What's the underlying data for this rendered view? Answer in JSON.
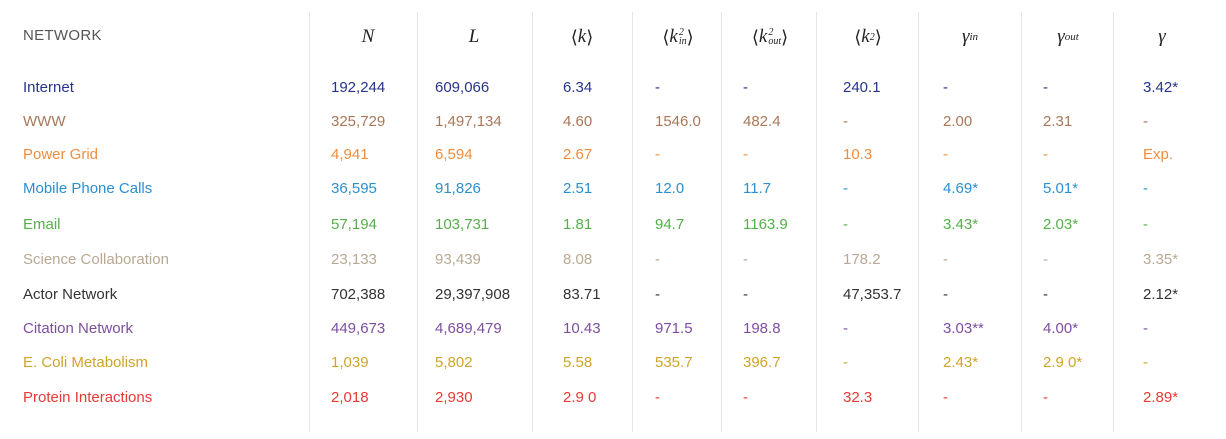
{
  "headers": {
    "network": "NETWORK",
    "N": "N",
    "L": "L",
    "k": "k",
    "k_in2": "k",
    "k_out2": "k",
    "k2": "k",
    "gamma_in": "γ",
    "gamma_out": "γ",
    "gamma": "γ",
    "sup2": "2",
    "sub_in": "in",
    "sub_out": "out",
    "langle": "⟨",
    "rangle": "⟩"
  },
  "rows": [
    {
      "name": "Internet",
      "color": "#27348b",
      "N": "192,244",
      "L": "609,066",
      "k": "6.34",
      "kin2": "-",
      "kout2": "-",
      "k2": "240.1",
      "gin": "-",
      "gout": "-",
      "g": "3.42*"
    },
    {
      "name": "WWW",
      "color": "#a9785a",
      "N": "325,729",
      "L": "1,497,134",
      "k": "4.60",
      "kin2": "1546.0",
      "kout2": "482.4",
      "k2": "-",
      "gin": "2.00",
      "gout": "2.31",
      "g": "-"
    },
    {
      "name": "Power Grid",
      "color": "#f08d3e",
      "N": "4,941",
      "L": "6,594",
      "k": "2.67",
      "kin2": "-",
      "kout2": "-",
      "k2": "10.3",
      "gin": "-",
      "gout": "-",
      "g": "Exp."
    },
    {
      "name": "Mobile Phone Calls",
      "color": "#2c8fd0",
      "N": "36,595",
      "L": "91,826",
      "k": "2.51",
      "kin2": "12.0",
      "kout2": "11.7",
      "k2": "-",
      "gin": "4.69*",
      "gout": "5.01*",
      "g": "-"
    },
    {
      "name": "Email",
      "color": "#55b04a",
      "N": "57,194",
      "L": "103,731",
      "k": "1.81",
      "kin2": "94.7",
      "kout2": "1163.9",
      "k2": "-",
      "gin": "3.43*",
      "gout": "2.03*",
      "g": "-"
    },
    {
      "name": "Science Collaboration",
      "color": "#b8a994",
      "N": "23,133",
      "L": "93,439",
      "k": "8.08",
      "kin2": "-",
      "kout2": "-",
      "k2": "178.2",
      "gin": "-",
      "gout": "-",
      "g": "3.35*"
    },
    {
      "name": "Actor Network",
      "color": "#333333",
      "N": "702,388",
      "L": "29,397,908",
      "k": "83.71",
      "kin2": "-",
      "kout2": "-",
      "k2": "47,353.7",
      "gin": "-",
      "gout": "-",
      "g": "2.12*"
    },
    {
      "name": "Citation Network",
      "color": "#7e4ea1",
      "N": "449,673",
      "L": "4,689,479",
      "k": "10.43",
      "kin2": "971.5",
      "kout2": "198.8",
      "k2": "-",
      "gin": "3.03**",
      "gout": "4.00*",
      "g": "-"
    },
    {
      "name": "E. Coli Metabolism",
      "color": "#cfa42c",
      "N": "1,039",
      "L": "5,802",
      "k": "5.58",
      "kin2": "535.7",
      "kout2": "396.7",
      "k2": "-",
      "gin": "2.43*",
      "gout": "2.9 0*",
      "g": "-"
    },
    {
      "name": "Protein Interactions",
      "color": "#e63a35",
      "N": "2,018",
      "L": "2,930",
      "k": "2.9 0",
      "kin2": "-",
      "kout2": "-",
      "k2": "32.3",
      "gin": "-",
      "gout": "-",
      "g": "2.89*"
    }
  ]
}
